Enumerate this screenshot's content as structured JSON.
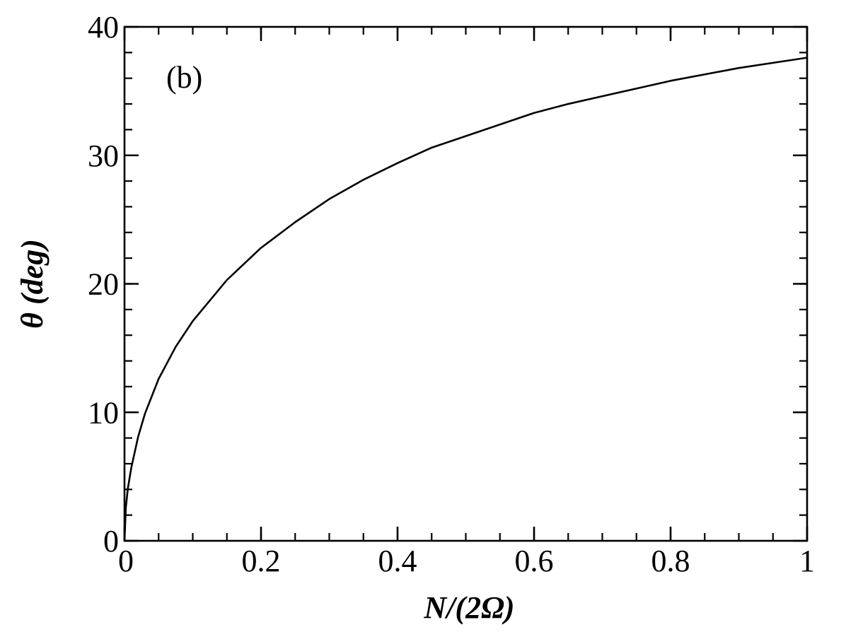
{
  "chart_data": {
    "type": "line",
    "title": "",
    "panel_label": "(b)",
    "xlabel": "N/(2Ω)",
    "ylabel": "θ (deg)",
    "xlim": [
      0,
      1
    ],
    "ylim": [
      0,
      40
    ],
    "x_ticks": [
      0,
      0.2,
      0.4,
      0.6,
      0.8,
      1
    ],
    "x_tick_labels": [
      "0",
      "0.2",
      "0.4",
      "0.6",
      "0.8",
      "1"
    ],
    "y_ticks": [
      0,
      10,
      20,
      30,
      40
    ],
    "y_tick_labels": [
      "0",
      "10",
      "20",
      "30",
      "40"
    ],
    "x_minor_step": 0.05,
    "y_minor_step": 2,
    "grid": false,
    "legend": "none",
    "line_color": "#000000",
    "series": [
      {
        "x": [
          0,
          0.002,
          0.005,
          0.01,
          0.02,
          0.03,
          0.05,
          0.075,
          0.1,
          0.15,
          0.2,
          0.25,
          0.3,
          0.35,
          0.4,
          0.45,
          0.5,
          0.55,
          0.6,
          0.65,
          0.7,
          0.75,
          0.8,
          0.85,
          0.9,
          0.95,
          1.0
        ],
        "y": [
          0,
          2.6,
          4.1,
          5.7,
          8.1,
          9.9,
          12.6,
          15.1,
          17.1,
          20.3,
          22.8,
          24.8,
          26.6,
          28.1,
          29.4,
          30.6,
          31.5,
          32.4,
          33.3,
          34.0,
          34.6,
          35.2,
          35.8,
          36.3,
          36.8,
          37.2,
          37.6
        ]
      }
    ]
  }
}
